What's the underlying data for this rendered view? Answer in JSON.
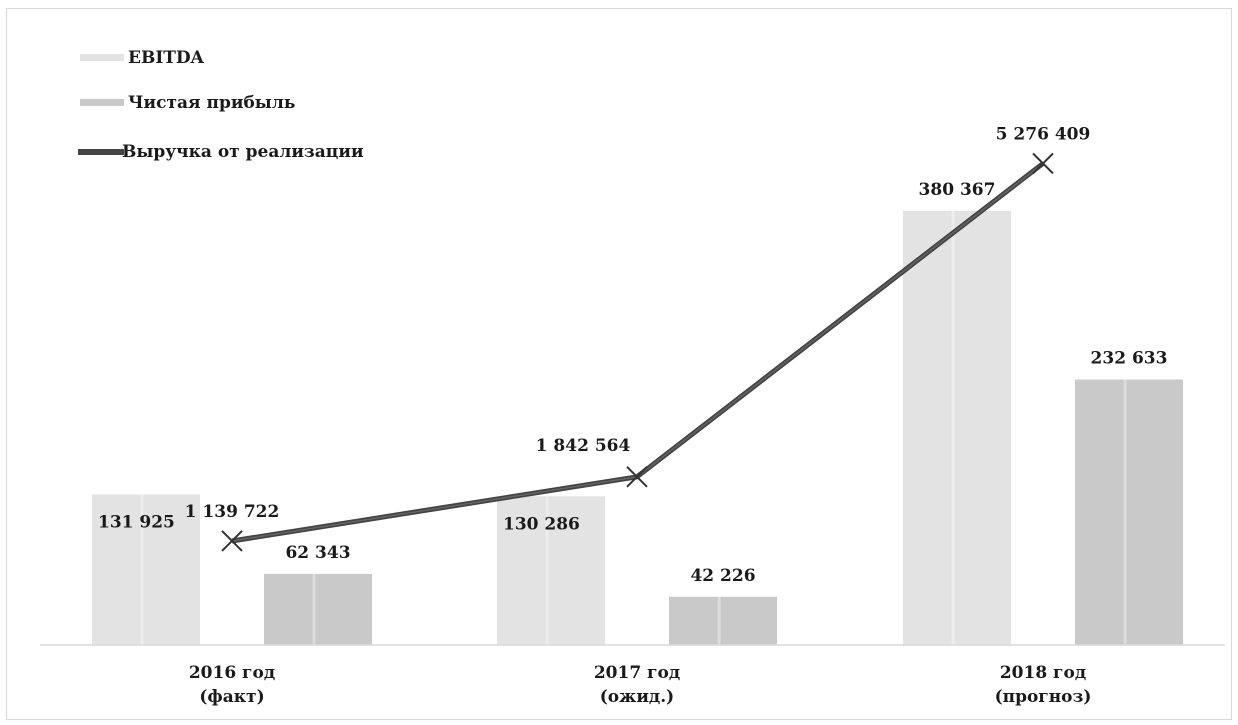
{
  "chart_data": {
    "type": "bar",
    "categories": [
      [
        "2016 год",
        "(факт)"
      ],
      [
        "2017 год",
        "(ожид.)"
      ],
      [
        "2018 год",
        "(прогноз)"
      ]
    ],
    "series": [
      {
        "name": "EBITDA",
        "kind": "bar",
        "values": [
          131925,
          130286,
          380367
        ],
        "labels": [
          "131 925",
          "130 286",
          "380 367"
        ],
        "color": "#e3e3e3"
      },
      {
        "name": "Чистая прибыль",
        "kind": "bar",
        "values": [
          62343,
          42226,
          232633
        ],
        "labels": [
          "62 343",
          "42 226",
          "232 633"
        ],
        "color": "#c9c9c9"
      },
      {
        "name": "Выручка от реализации",
        "kind": "line",
        "values": [
          1139722,
          1842564,
          5276409
        ],
        "labels": [
          "1 139 722",
          "1 842 564",
          "5 276 409"
        ],
        "color": "#444444",
        "marker": "x"
      }
    ],
    "legend_position": "top-left",
    "grid": false
  }
}
